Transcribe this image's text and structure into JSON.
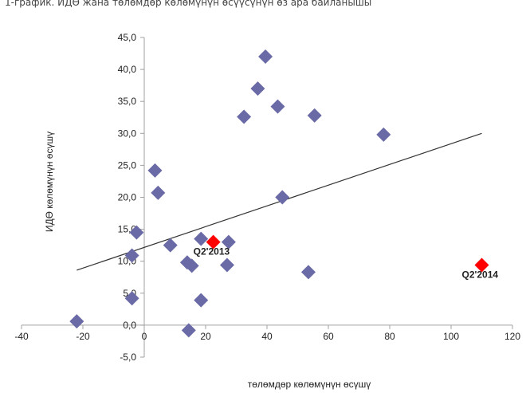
{
  "header": {
    "title": "1-график. ИДӨ жана төлөмдөр көлөмүнүн өсүүсүнүн өз ара байланышы"
  },
  "chart_data": {
    "type": "scatter",
    "title": "",
    "xlabel": "төлөмдөр көлөмүнүн өсүшү",
    "ylabel": "ИДӨ көлөмүнүн өсүшү",
    "xlim": [
      -40,
      120
    ],
    "ylim": [
      -5,
      45
    ],
    "x_ticks": [
      -40,
      -20,
      0,
      20,
      40,
      60,
      80,
      100,
      120
    ],
    "y_ticks": [
      -5,
      0,
      5,
      10,
      15,
      20,
      25,
      30,
      35,
      40,
      45
    ],
    "y_tick_labels": [
      "-5,0",
      "0,0",
      "5,0",
      "10,0",
      "15,0",
      "20,0",
      "25,0",
      "30,0",
      "35,0",
      "40,0",
      "45,0"
    ],
    "grid": false,
    "series": [
      {
        "color": "#6a6aa6",
        "marker": "diamond",
        "points": [
          [
            39.5,
            42.0
          ],
          [
            37.0,
            37.0
          ],
          [
            43.5,
            34.2
          ],
          [
            55.5,
            32.8
          ],
          [
            32.5,
            32.6
          ],
          [
            78.0,
            29.8
          ],
          [
            3.5,
            24.2
          ],
          [
            4.5,
            20.7
          ],
          [
            45.0,
            20.0
          ],
          [
            -2.5,
            14.5
          ],
          [
            8.5,
            12.5
          ],
          [
            18.5,
            13.5
          ],
          [
            27.5,
            13.0
          ],
          [
            -4.0,
            10.9
          ],
          [
            14.0,
            9.8
          ],
          [
            15.5,
            9.3
          ],
          [
            27.0,
            9.4
          ],
          [
            53.5,
            8.3
          ],
          [
            -4.0,
            4.2
          ],
          [
            18.5,
            3.9
          ],
          [
            -22.0,
            0.6
          ],
          [
            14.5,
            -0.8
          ]
        ]
      },
      {
        "color": "#ff0000",
        "marker": "diamond",
        "points": [
          {
            "x": 22.5,
            "y": 13.0,
            "label": "Q2'2013"
          },
          {
            "x": 110.0,
            "y": 9.4,
            "label": "Q2'2014"
          }
        ]
      }
    ],
    "trendline": {
      "x": [
        -22,
        110
      ],
      "y": [
        8.6,
        30.0
      ],
      "color": "#333333"
    }
  }
}
